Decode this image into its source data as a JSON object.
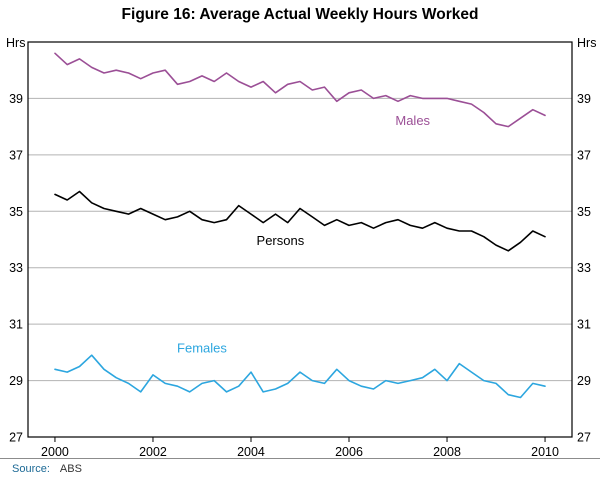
{
  "title": "Figure 16: Average Actual Weekly Hours Worked",
  "axis_unit": "Hrs",
  "source": {
    "label": "Source:",
    "value": "ABS"
  },
  "chart_data": {
    "type": "line",
    "title": "Figure 16: Average Actual Weekly Hours Worked",
    "xlabel": "",
    "ylabel": "Hrs",
    "ylim": [
      27,
      41
    ],
    "yticks": [
      27,
      29,
      31,
      33,
      35,
      37,
      39
    ],
    "xlim": [
      1999.45,
      2010.55
    ],
    "xticks": [
      2000,
      2002,
      2004,
      2006,
      2008,
      2010
    ],
    "x_start": 2000,
    "x_step": 0.25,
    "grid": true,
    "grid_color": "#b3b3b3",
    "legend": "inline-labels",
    "series": [
      {
        "name": "Males",
        "color": "#9b4f96",
        "label_pos": {
          "x": 2007.3,
          "y": 38.05
        },
        "values": [
          40.6,
          40.2,
          40.4,
          40.1,
          39.9,
          40.0,
          39.9,
          39.7,
          39.9,
          40.0,
          39.5,
          39.6,
          39.8,
          39.6,
          39.9,
          39.6,
          39.4,
          39.6,
          39.2,
          39.5,
          39.6,
          39.3,
          39.4,
          38.9,
          39.2,
          39.3,
          39.0,
          39.1,
          38.9,
          39.1,
          39.0,
          39.0,
          39.0,
          38.9,
          38.8,
          38.5,
          38.1,
          38.0,
          38.3,
          38.6,
          38.4
        ]
      },
      {
        "name": "Persons",
        "color": "#000000",
        "label_pos": {
          "x": 2004.6,
          "y": 33.8
        },
        "values": [
          35.6,
          35.4,
          35.7,
          35.3,
          35.1,
          35.0,
          34.9,
          35.1,
          34.9,
          34.7,
          34.8,
          35.0,
          34.7,
          34.6,
          34.7,
          35.2,
          34.9,
          34.6,
          34.9,
          34.6,
          35.1,
          34.8,
          34.5,
          34.7,
          34.5,
          34.6,
          34.4,
          34.6,
          34.7,
          34.5,
          34.4,
          34.6,
          34.4,
          34.3,
          34.3,
          34.1,
          33.8,
          33.6,
          33.9,
          34.3,
          34.1
        ]
      },
      {
        "name": "Females",
        "color": "#2ca6df",
        "label_pos": {
          "x": 2003.0,
          "y": 30.0
        },
        "values": [
          29.4,
          29.3,
          29.5,
          29.9,
          29.4,
          29.1,
          28.9,
          28.6,
          29.2,
          28.9,
          28.8,
          28.6,
          28.9,
          29.0,
          28.6,
          28.8,
          29.3,
          28.6,
          28.7,
          28.9,
          29.3,
          29.0,
          28.9,
          29.4,
          29.0,
          28.8,
          28.7,
          29.0,
          28.9,
          29.0,
          29.1,
          29.4,
          29.0,
          29.6,
          29.3,
          29.0,
          28.9,
          28.5,
          28.4,
          28.9,
          28.8
        ]
      }
    ]
  }
}
